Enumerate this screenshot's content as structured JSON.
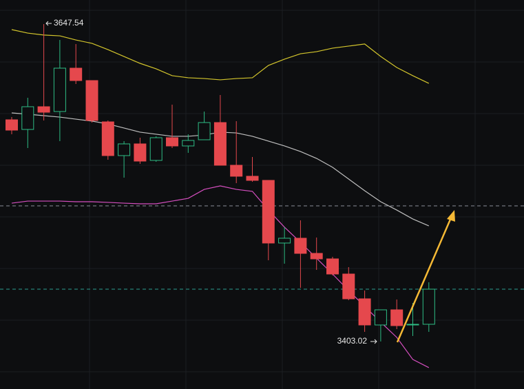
{
  "chart_data": {
    "type": "candlestick",
    "ylim": [
      3366.42,
      3666.1
    ],
    "up_color": "#2ebd85",
    "down_color": "#e5484d",
    "candles": [
      {
        "open": 3573.81,
        "high": 3575.93,
        "low": 3562.67,
        "close": 3565.85
      },
      {
        "open": 3566.38,
        "high": 3590.78,
        "low": 3552.06,
        "close": 3583.89
      },
      {
        "open": 3583.89,
        "high": 3647.54,
        "low": 3573.28,
        "close": 3579.64
      },
      {
        "open": 3580.18,
        "high": 3635.34,
        "low": 3557.37,
        "close": 3613.59
      },
      {
        "open": 3613.59,
        "high": 3632.15,
        "low": 3601.39,
        "close": 3604.04
      },
      {
        "open": 3604.04,
        "high": 3604.04,
        "low": 3571.69,
        "close": 3573.28
      },
      {
        "open": 3572.22,
        "high": 3573.28,
        "low": 3543.05,
        "close": 3546.23
      },
      {
        "open": 3546.23,
        "high": 3557.37,
        "low": 3529.26,
        "close": 3555.25
      },
      {
        "open": 3555.25,
        "high": 3560.02,
        "low": 3539.86,
        "close": 3541.99
      },
      {
        "open": 3542.52,
        "high": 3561.08,
        "low": 3541.46,
        "close": 3560.02
      },
      {
        "open": 3560.02,
        "high": 3585.48,
        "low": 3552.06,
        "close": 3553.66
      },
      {
        "open": 3553.66,
        "high": 3562.67,
        "low": 3548.35,
        "close": 3557.9
      },
      {
        "open": 3558.43,
        "high": 3580.18,
        "low": 3558.43,
        "close": 3571.69
      },
      {
        "open": 3571.69,
        "high": 3592.9,
        "low": 3538.8,
        "close": 3538.8
      },
      {
        "open": 3538.8,
        "high": 3572.75,
        "low": 3525.01,
        "close": 3530.32
      },
      {
        "open": 3530.32,
        "high": 3545.17,
        "low": 3526.07,
        "close": 3527.14
      },
      {
        "open": 3527.14,
        "high": 3527.14,
        "low": 3465.61,
        "close": 3478.87
      },
      {
        "open": 3478.87,
        "high": 3491.07,
        "low": 3462.96,
        "close": 3482.58
      },
      {
        "open": 3482.58,
        "high": 3496.37,
        "low": 3444.39,
        "close": 3470.91
      },
      {
        "open": 3470.91,
        "high": 3483.11,
        "low": 3458.18,
        "close": 3466.67
      },
      {
        "open": 3466.67,
        "high": 3468.26,
        "low": 3453.94,
        "close": 3455.0
      },
      {
        "open": 3455.0,
        "high": 3460.3,
        "low": 3434.85,
        "close": 3435.91
      },
      {
        "open": 3435.91,
        "high": 3442.27,
        "low": 3410.45,
        "close": 3415.75
      },
      {
        "open": 3415.75,
        "high": 3427.42,
        "low": 3403.02,
        "close": 3427.42
      },
      {
        "open": 3427.42,
        "high": 3435.38,
        "low": 3412.57,
        "close": 3415.22
      },
      {
        "open": 3415.75,
        "high": 3432.72,
        "low": 3407.26,
        "close": 3416.28
      },
      {
        "open": 3416.28,
        "high": 3448.64,
        "low": 3410.45,
        "close": 3443.33
      }
    ],
    "bands": [
      {
        "color": "#d4c62c",
        "values": [
          3643.3,
          3640.6,
          3639.1,
          3638.5,
          3635.3,
          3632.7,
          3627.9,
          3622.6,
          3617.3,
          3613.1,
          3607.8,
          3606.2,
          3605.6,
          3604.6,
          3605.6,
          3606.2,
          3615.7,
          3620.5,
          3624.7,
          3626.3,
          3629.0,
          3630.6,
          3632.2,
          3622.6,
          3614.1,
          3607.8,
          3601.9
        ]
      },
      {
        "color": "#bfbfbf",
        "values": [
          3579.1,
          3578.1,
          3577.0,
          3575.9,
          3574.3,
          3572.8,
          3570.6,
          3567.5,
          3564.3,
          3562.7,
          3561.1,
          3561.1,
          3562.1,
          3564.3,
          3563.7,
          3561.1,
          3557.4,
          3553.7,
          3549.4,
          3544.1,
          3537.2,
          3528.2,
          3519.2,
          3510.7,
          3504.3,
          3497.4,
          3492.1
        ]
      },
      {
        "color": "#d64fc0",
        "values": [
          3509.6,
          3511.2,
          3511.2,
          3511.2,
          3510.7,
          3510.7,
          3510.2,
          3509.6,
          3509.1,
          3509.1,
          3511.2,
          3513.3,
          3520.2,
          3522.9,
          3520.2,
          3518.7,
          3504.3,
          3491.1,
          3479.4,
          3467.2,
          3455.0,
          3442.3,
          3430.1,
          3417.9,
          3406.2,
          3389.2,
          3382.9
        ]
      }
    ],
    "levels": [
      {
        "value": 3507.5,
        "color": "#8a8f98"
      },
      {
        "value": 3443.3,
        "color": "#2a9d8f"
      }
    ]
  }
}
